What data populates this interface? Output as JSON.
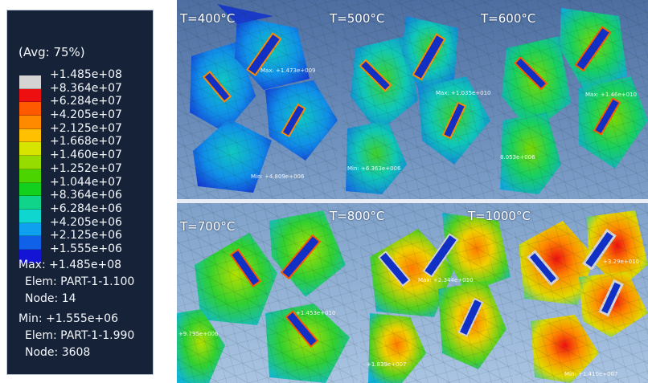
{
  "legend": {
    "avg_label": "(Avg: 75%)",
    "values": [
      "+1.485e+08",
      "+8.364e+07",
      "+6.284e+07",
      "+4.205e+07",
      "+2.125e+07",
      "+1.668e+07",
      "+1.460e+07",
      "+1.252e+07",
      "+1.044e+07",
      "+8.364e+06",
      "+6.284e+06",
      "+4.205e+06",
      "+2.125e+06",
      "+1.555e+06"
    ],
    "colors": [
      "#d4d4d4",
      "#ee1010",
      "#ff5a00",
      "#ff8a00",
      "#ffc000",
      "#d6e400",
      "#96dc00",
      "#4cd400",
      "#14d01e",
      "#10d48a",
      "#10d6d0",
      "#10a0f0",
      "#1060e8",
      "#1414d4"
    ],
    "max_line": "Max: +1.485e+08",
    "max_elem": "Elem: PART-1-1.100",
    "max_node": "Node: 14",
    "min_line": "Min: +1.555e+06",
    "min_elem": "Elem: PART-1-1.990",
    "min_node": "Node: 3608"
  },
  "panels": [
    {
      "label": "T=400°C",
      "max_text": "Max: +1.473e+009",
      "min_text": "Min: +4.809e+006"
    },
    {
      "label": "T=500°C",
      "max_text": "Max: +1.035e+010",
      "min_text": "Min: +6.363e+006"
    },
    {
      "label": "T=600°C",
      "max_text": "Max: +1.46e+010",
      "min_text": "8.053e+006"
    },
    {
      "label": "T=700°C",
      "max_text": "+1.453e+010",
      "min_text": "+9.795e+006"
    },
    {
      "label": "T=800°C",
      "max_text": "Max: +2.344e+010",
      "min_text": "+1.839e+007"
    },
    {
      "label": "T=1000°C",
      "max_text": "+3.29e+010",
      "min_text": "Min: +1.410e+007"
    }
  ]
}
